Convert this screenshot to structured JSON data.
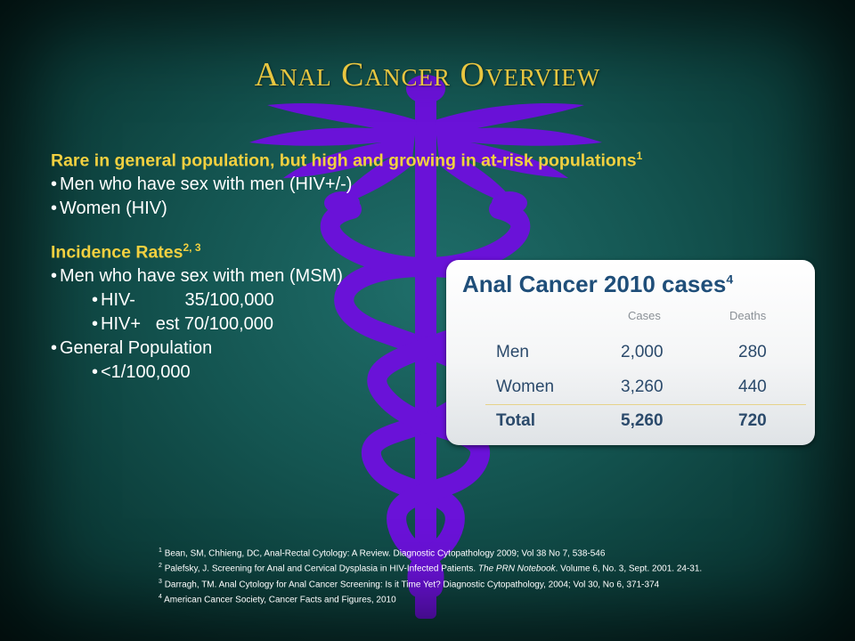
{
  "slide": {
    "title": "Anal Cancer Overview",
    "intro_heading": "Rare in general population, but high and growing in at-risk populations",
    "intro_heading_ref": "1",
    "intro_bullets": [
      "Men who have sex with men (HIV+/-)",
      "Women (HIV)"
    ],
    "incidence_heading": "Incidence Rates",
    "incidence_heading_ref": "2, 3",
    "incidence_bullets": [
      {
        "label": "Men who have sex with men (MSM)"
      },
      {
        "label": "HIV-          35/100,000"
      },
      {
        "label": "HIV+   est 70/100,000"
      },
      {
        "label": "General Population"
      },
      {
        "label": "<1/100,000"
      }
    ]
  },
  "table": {
    "title": "Anal Cancer 2010 cases",
    "title_ref": "4",
    "columns": [
      "Cases",
      "Deaths"
    ],
    "rows": [
      {
        "label": "Men",
        "cases": "2,000",
        "deaths": "280"
      },
      {
        "label": "Women",
        "cases": "3,260",
        "deaths": "440"
      },
      {
        "label": "Total",
        "cases": "5,260",
        "deaths": "720"
      }
    ]
  },
  "references": [
    {
      "num": "1",
      "text": "Bean, SM, Chhieng, DC, Anal-Rectal Cytology: A Review. Diagnostic Cytopathology 2009; Vol 38 No 7, 538-546"
    },
    {
      "num": "2",
      "pre": "Palefsky, J.  Screening for Anal and Cervical Dysplasia in HIV-Infected Patients. ",
      "italic": "The PRN Notebook",
      "post": ".  Volume 6, No. 3, Sept. 2001.  24-31."
    },
    {
      "num": "3",
      "text": "Darragh, TM. Anal Cytology for Anal Cancer Screening: Is it Time Yet?  Diagnostic Cytopathology, 2004; Vol 30, No 6, 371-374"
    },
    {
      "num": "4",
      "text": "American Cancer Society, Cancer Facts and Figures, 2010"
    }
  ],
  "colors": {
    "title": "#e8c640",
    "heading": "#f2d040",
    "caduceus": "#6a12d8",
    "table_title": "#1f4e79",
    "background": "#145551"
  },
  "icons": {
    "background_symbol": "caduceus-icon"
  }
}
